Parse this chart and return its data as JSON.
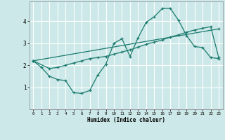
{
  "xlabel": "Humidex (Indice chaleur)",
  "ylabel": "",
  "bg_color": "#cde8e8",
  "grid_color": "#ffffff",
  "line_color": "#1a7a6e",
  "xlim": [
    -0.5,
    23.5
  ],
  "ylim": [
    0.0,
    4.9
  ],
  "yticks": [
    1,
    2,
    3,
    4
  ],
  "xticks": [
    0,
    1,
    2,
    3,
    4,
    5,
    6,
    7,
    8,
    9,
    10,
    11,
    12,
    13,
    14,
    15,
    16,
    17,
    18,
    19,
    20,
    21,
    22,
    23
  ],
  "line1_x": [
    0,
    1,
    2,
    3,
    4,
    5,
    6,
    7,
    8,
    9,
    10,
    11,
    12,
    13,
    14,
    15,
    16,
    17,
    18,
    19,
    20,
    21,
    22,
    23
  ],
  "line1_y": [
    2.2,
    1.9,
    1.5,
    1.35,
    1.3,
    0.75,
    0.72,
    0.85,
    1.55,
    2.05,
    3.0,
    3.2,
    2.4,
    3.25,
    3.95,
    4.2,
    4.58,
    4.58,
    4.05,
    3.35,
    2.85,
    2.8,
    2.35,
    2.3
  ],
  "line2_x": [
    0,
    23
  ],
  "line2_y": [
    2.2,
    3.65
  ],
  "line3_x": [
    0,
    2,
    3,
    4,
    5,
    6,
    7,
    8,
    9,
    10,
    11,
    12,
    13,
    14,
    15,
    16,
    17,
    18,
    19,
    20,
    21,
    22,
    23
  ],
  "line3_y": [
    2.2,
    1.85,
    1.9,
    2.0,
    2.1,
    2.2,
    2.3,
    2.35,
    2.4,
    2.5,
    2.6,
    2.7,
    2.82,
    2.95,
    3.05,
    3.15,
    3.28,
    3.38,
    3.5,
    3.6,
    3.68,
    3.75,
    2.35
  ]
}
